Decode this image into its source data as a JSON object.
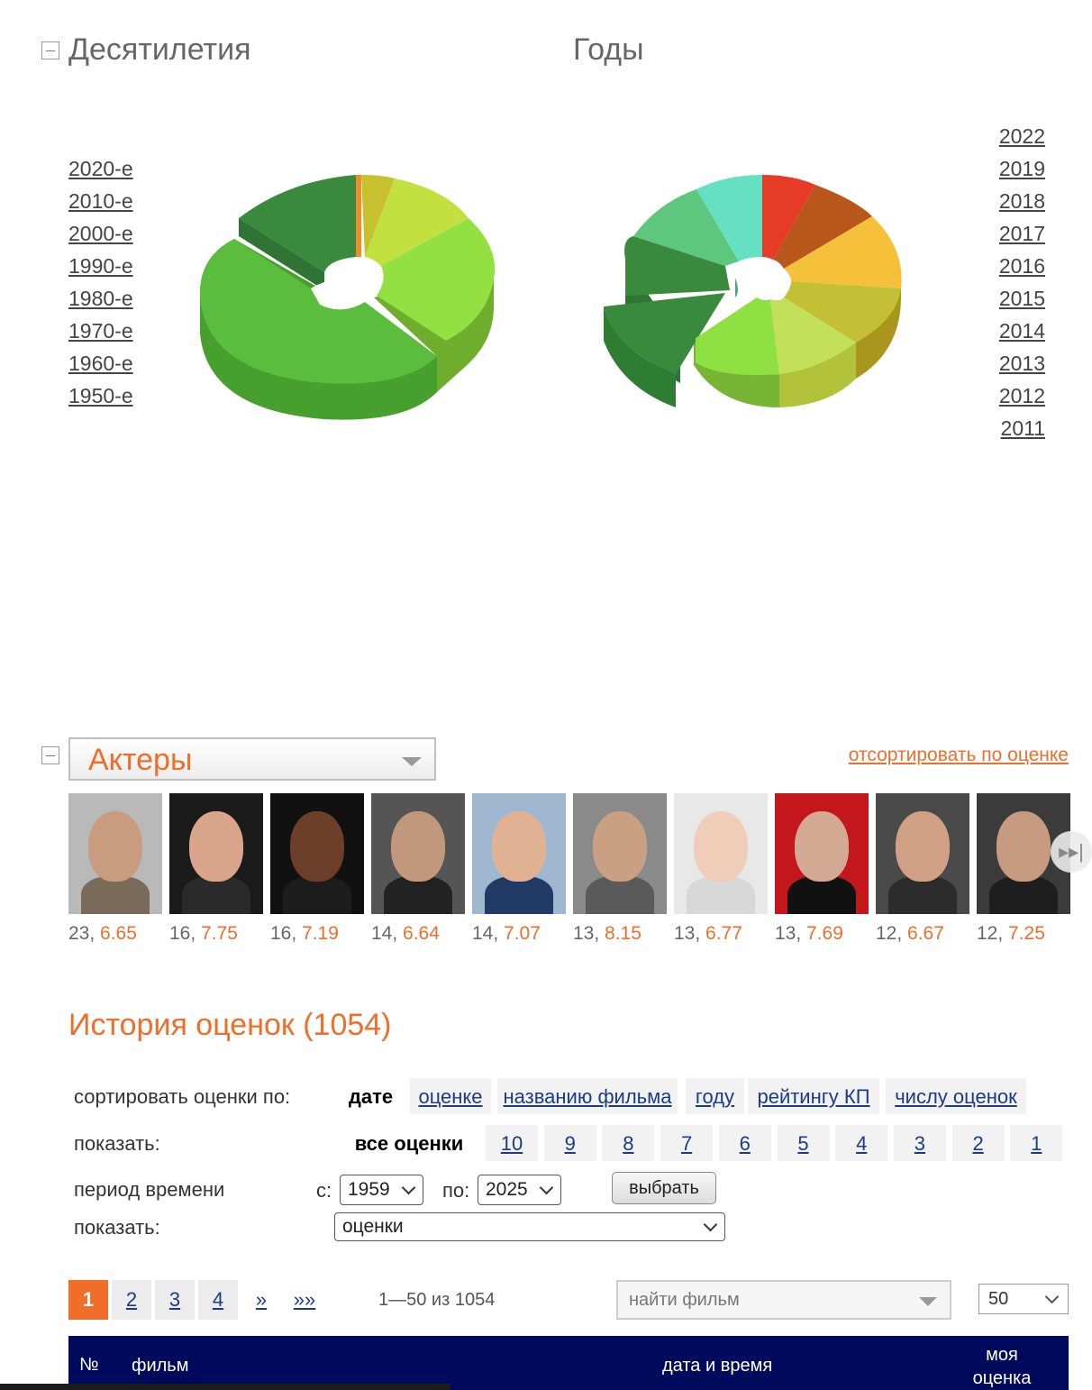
{
  "decades": {
    "title": "Десятилетия",
    "legend": [
      "2020-е",
      "2010-е",
      "2000-е",
      "1990-е",
      "1980-е",
      "1970-е",
      "1960-е",
      "1950-е"
    ]
  },
  "years": {
    "title": "Годы",
    "legend": [
      "2022",
      "2019",
      "2018",
      "2017",
      "2016",
      "2015",
      "2014",
      "2013",
      "2012",
      "2011"
    ]
  },
  "actors": {
    "select_label": "Актеры",
    "sort_link": "отсортировать по оценке",
    "next_icon": "▸▸|",
    "items": [
      {
        "count": "23, ",
        "rating": "6.65"
      },
      {
        "count": "16, ",
        "rating": "7.75"
      },
      {
        "count": "16, ",
        "rating": "7.19"
      },
      {
        "count": "14, ",
        "rating": "6.64"
      },
      {
        "count": "14, ",
        "rating": "7.07"
      },
      {
        "count": "13, ",
        "rating": "8.15"
      },
      {
        "count": "13, ",
        "rating": "6.77"
      },
      {
        "count": "13, ",
        "rating": "7.69"
      },
      {
        "count": "12, ",
        "rating": "6.67"
      },
      {
        "count": "12, ",
        "rating": "7.25"
      }
    ]
  },
  "history": {
    "title": "История оценок (1054)",
    "sort_label": "сортировать оценки по:",
    "sort_options": [
      "дате",
      "оценке",
      "названию фильма",
      "году",
      "рейтингу КП",
      "числу оценок"
    ],
    "show_label": "показать:",
    "show_options": [
      "все оценки",
      "10",
      "9",
      "8",
      "7",
      "6",
      "5",
      "4",
      "3",
      "2",
      "1"
    ],
    "period_label": "период времени",
    "from_label": "с:",
    "from_value": "1959",
    "to_label": "по:",
    "to_value": "2025",
    "choose_button": "выбрать",
    "show2_label": "показать:",
    "show2_value": "оценки"
  },
  "pagination": {
    "pages": [
      "1",
      "2",
      "3",
      "4",
      "»",
      "»»"
    ],
    "info": "1—50 из 1054",
    "find_placeholder": "найти фильм",
    "per_page": "50"
  },
  "table": {
    "col_num": "№",
    "col_film": "фильм",
    "col_date": "дата и время",
    "col_my_rating": "моя оценка"
  },
  "colors": {
    "accent": "#f06d2a",
    "link": "#1a3a8c",
    "table_header": "#000a5c"
  }
}
